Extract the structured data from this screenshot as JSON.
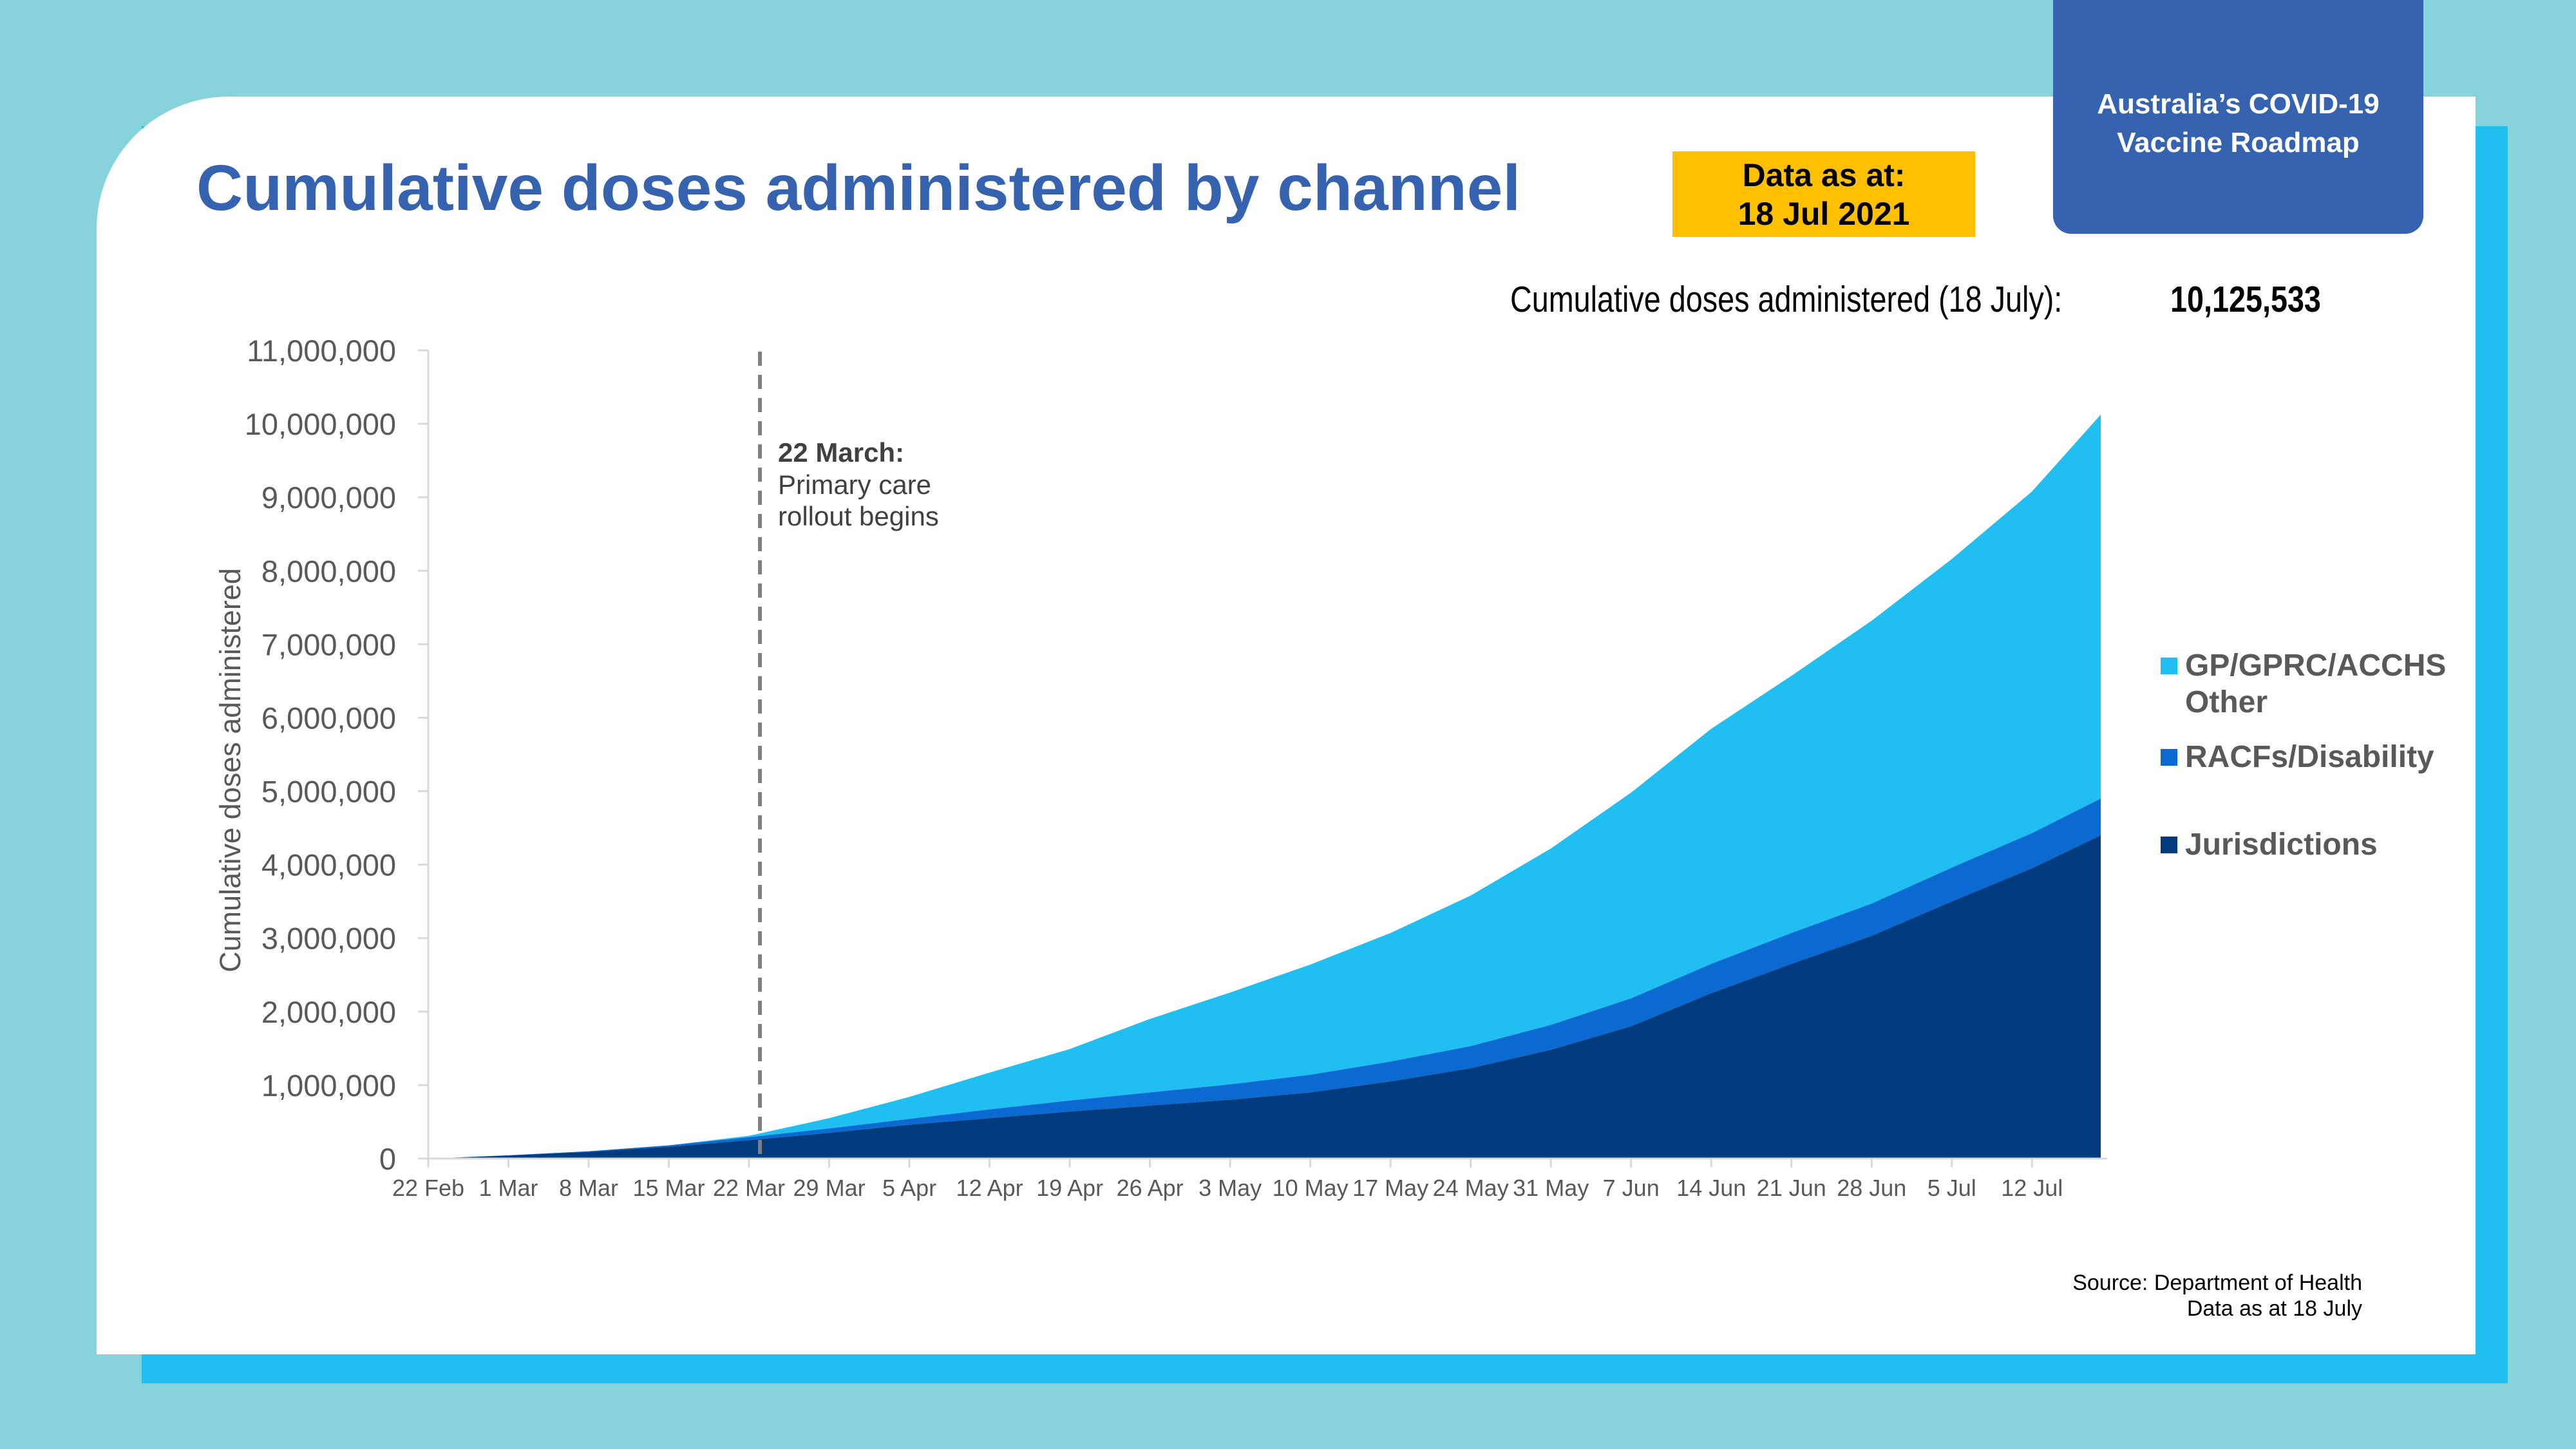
{
  "header": {
    "title": "Cumulative doses administered by channel",
    "as_at_line1": "Data as at:",
    "as_at_line2": "18 Jul 2021",
    "roadmap_line1": "Australia’s COVID-19",
    "roadmap_line2": "Vaccine Roadmap"
  },
  "total": {
    "label": "Cumulative doses administered (18 July):",
    "value": "10,125,533"
  },
  "source": {
    "line1": "Source: Department of Health",
    "line2": "Data as at 18 July"
  },
  "colors": {
    "frame": "#86d3dc",
    "accent_bar": "#1fbff0",
    "title": "#3563b0",
    "as_at_box": "#ffc000",
    "gp": "#1fc0f1",
    "racf": "#0a6ad1",
    "jurisdictions": "#003c7d"
  },
  "chart_data": {
    "type": "area",
    "stacked": true,
    "ylabel": "Cumulative doses administered",
    "ylim": [
      0,
      11000000
    ],
    "y_ticks": [
      0,
      1000000,
      2000000,
      3000000,
      4000000,
      5000000,
      6000000,
      7000000,
      8000000,
      9000000,
      10000000,
      11000000
    ],
    "y_tick_labels": [
      "0",
      "1,000,000",
      "2,000,000",
      "3,000,000",
      "4,000,000",
      "5,000,000",
      "6,000,000",
      "7,000,000",
      "8,000,000",
      "9,000,000",
      "10,000,000",
      "11,000,000"
    ],
    "x_start": "2021-02-22",
    "x_end": "2021-07-18",
    "x_ticks": [
      "2021-02-22",
      "2021-03-01",
      "2021-03-08",
      "2021-03-15",
      "2021-03-22",
      "2021-03-29",
      "2021-04-05",
      "2021-04-12",
      "2021-04-19",
      "2021-04-26",
      "2021-05-03",
      "2021-05-10",
      "2021-05-17",
      "2021-05-24",
      "2021-05-31",
      "2021-06-07",
      "2021-06-14",
      "2021-06-21",
      "2021-06-28",
      "2021-07-05",
      "2021-07-12"
    ],
    "x_tick_labels": [
      "22 Feb",
      "1 Mar",
      "8 Mar",
      "15 Mar",
      "22 Mar",
      "29 Mar",
      "5 Apr",
      "12 Apr",
      "19 Apr",
      "26 Apr",
      "3 May",
      "10 May",
      "17 May",
      "24 May",
      "31 May",
      "7 Jun",
      "14 Jun",
      "21 Jun",
      "28 Jun",
      "5 Jul",
      "12 Jul"
    ],
    "annotation": {
      "date": "2021-03-22",
      "bold": "22 March:",
      "line2": "Primary care",
      "line3": "rollout begins"
    },
    "legend_placement": "right",
    "x": [
      "2021-02-22",
      "2021-03-01",
      "2021-03-08",
      "2021-03-15",
      "2021-03-22",
      "2021-03-29",
      "2021-04-05",
      "2021-04-12",
      "2021-04-19",
      "2021-04-26",
      "2021-05-03",
      "2021-05-10",
      "2021-05-17",
      "2021-05-24",
      "2021-05-31",
      "2021-06-07",
      "2021-06-14",
      "2021-06-21",
      "2021-06-28",
      "2021-07-05",
      "2021-07-12",
      "2021-07-18"
    ],
    "series": [
      {
        "name": "Jurisdictions",
        "color": "#003c7d",
        "values": [
          0,
          40000,
          90000,
          160000,
          250000,
          350000,
          460000,
          550000,
          640000,
          720000,
          800000,
          900000,
          1050000,
          1230000,
          1480000,
          1800000,
          2250000,
          2650000,
          3030000,
          3500000,
          3950000,
          4400000
        ]
      },
      {
        "name": "RACFs/Disability",
        "color": "#0a6ad1",
        "values": [
          0,
          5000,
          10000,
          20000,
          40000,
          60000,
          80000,
          120000,
          150000,
          180000,
          210000,
          240000,
          270000,
          300000,
          340000,
          380000,
          400000,
          420000,
          440000,
          460000,
          480000,
          500000
        ]
      },
      {
        "name": "GP/GPRC/ACCHS Other",
        "color": "#1fc0f1",
        "values": [
          0,
          0,
          0,
          0,
          20000,
          140000,
          300000,
          500000,
          700000,
          1000000,
          1250000,
          1500000,
          1750000,
          2050000,
          2400000,
          2800000,
          3200000,
          3500000,
          3850000,
          4200000,
          4650000,
          5225533
        ]
      }
    ],
    "legend_labels": [
      "GP/GPRC/ACCHS",
      "Other",
      "RACFs/Disability",
      "Jurisdictions"
    ],
    "total_value": 10125533
  }
}
